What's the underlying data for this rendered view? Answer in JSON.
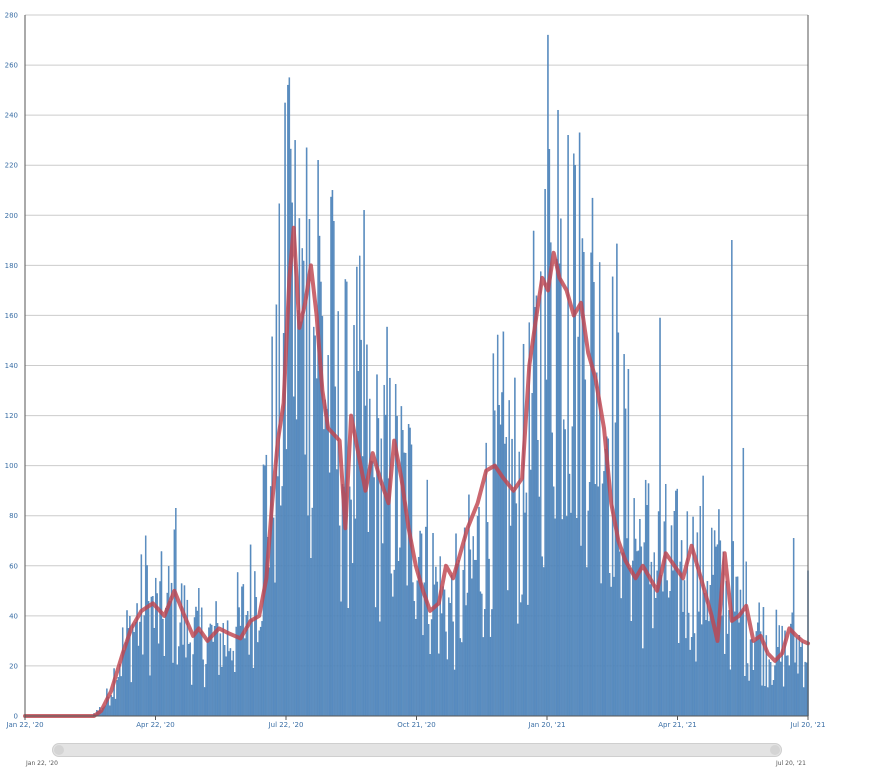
{
  "colors": {
    "bar": "#5b8fc3",
    "bar_edge": "#3f76ad",
    "average": "#c0454f",
    "grid": "#cccccc",
    "axis": "#555555"
  },
  "navigator": {
    "start_label": "Jan 22, '20",
    "end_label": "Jul 20, '21"
  },
  "chart_data": {
    "type": "bar",
    "title": "",
    "xlabel": "",
    "ylabel": "",
    "x_range": [
      "2020-01-22",
      "2021-07-20"
    ],
    "ylim": [
      0,
      280
    ],
    "yticks": [
      0,
      20,
      40,
      60,
      80,
      100,
      120,
      140,
      160,
      180,
      200,
      220,
      240,
      260,
      280
    ],
    "xticks": [
      "Jan 22, '20",
      "Apr 22, '20",
      "Jul 22, '20",
      "Oct 21, '20",
      "Jan 20, '21",
      "Apr 21, '21",
      "Jul 20, '21"
    ],
    "grid": true,
    "legend": "none",
    "series": [
      {
        "type": "bar",
        "interval": "daily",
        "start": "2020-01-22",
        "end": "2021-07-20",
        "shape_knots": [
          [
            "2020-01-22",
            0
          ],
          [
            "2020-03-08",
            0
          ],
          [
            "2020-03-18",
            5
          ],
          [
            "2020-03-28",
            25
          ],
          [
            "2020-04-08",
            40
          ],
          [
            "2020-04-18",
            44
          ],
          [
            "2020-04-28",
            42
          ],
          [
            "2020-05-05",
            48
          ],
          [
            "2020-05-15",
            35
          ],
          [
            "2020-05-25",
            32
          ],
          [
            "2020-06-10",
            33
          ],
          [
            "2020-06-20",
            38
          ],
          [
            "2020-06-30",
            55
          ],
          [
            "2020-07-08",
            90
          ],
          [
            "2020-07-15",
            120
          ],
          [
            "2020-07-20",
            150
          ],
          [
            "2020-07-25",
            190
          ],
          [
            "2020-07-30",
            170
          ],
          [
            "2020-08-05",
            155
          ],
          [
            "2020-08-12",
            175
          ],
          [
            "2020-08-20",
            140
          ],
          [
            "2020-08-28",
            115
          ],
          [
            "2020-09-05",
            110
          ],
          [
            "2020-09-12",
            120
          ],
          [
            "2020-09-20",
            95
          ],
          [
            "2020-09-28",
            102
          ],
          [
            "2020-10-06",
            95
          ],
          [
            "2020-10-14",
            90
          ],
          [
            "2020-10-22",
            85
          ],
          [
            "2020-10-30",
            62
          ],
          [
            "2020-11-07",
            48
          ],
          [
            "2020-11-15",
            45
          ],
          [
            "2020-11-25",
            55
          ],
          [
            "2020-12-05",
            75
          ],
          [
            "2020-12-15",
            98
          ],
          [
            "2020-12-25",
            100
          ],
          [
            "2021-01-02",
            92
          ],
          [
            "2021-01-08",
            115
          ],
          [
            "2021-01-15",
            150
          ],
          [
            "2021-01-22",
            172
          ],
          [
            "2021-01-28",
            180
          ],
          [
            "2021-02-05",
            172
          ],
          [
            "2021-02-12",
            165
          ],
          [
            "2021-02-20",
            160
          ],
          [
            "2021-03-01",
            135
          ],
          [
            "2021-03-10",
            120
          ],
          [
            "2021-03-18",
            85
          ],
          [
            "2021-03-26",
            70
          ],
          [
            "2021-04-03",
            68
          ],
          [
            "2021-04-11",
            60
          ],
          [
            "2021-04-19",
            58
          ],
          [
            "2021-04-27",
            62
          ],
          [
            "2021-05-05",
            60
          ],
          [
            "2021-05-13",
            65
          ],
          [
            "2021-05-21",
            56
          ],
          [
            "2021-05-29",
            45
          ],
          [
            "2021-06-06",
            40
          ],
          [
            "2021-06-14",
            38
          ],
          [
            "2021-06-22",
            30
          ],
          [
            "2021-07-01",
            26
          ],
          [
            "2021-07-10",
            30
          ],
          [
            "2021-07-20",
            30
          ]
        ],
        "spikes": [
          [
            "2020-07-24",
            255
          ],
          [
            "2020-07-23",
            252
          ],
          [
            "2020-07-26",
            205
          ],
          [
            "2020-08-05",
            227
          ],
          [
            "2020-08-13",
            222
          ],
          [
            "2020-08-23",
            210
          ],
          [
            "2020-09-14",
            202
          ],
          [
            "2020-05-06",
            83
          ],
          [
            "2020-04-15",
            72
          ],
          [
            "2021-01-20",
            272
          ],
          [
            "2021-01-27",
            242
          ],
          [
            "2021-02-03",
            232
          ],
          [
            "2021-02-08",
            220
          ],
          [
            "2021-05-28",
            190
          ],
          [
            "2021-04-08",
            159
          ],
          [
            "2021-06-05",
            107
          ],
          [
            "2021-07-20",
            58
          ],
          [
            "2021-07-10",
            71
          ]
        ]
      },
      {
        "type": "line",
        "smoothing": "7-day average",
        "points": [
          [
            "2020-01-22",
            0
          ],
          [
            "2020-03-10",
            0
          ],
          [
            "2020-03-15",
            2
          ],
          [
            "2020-03-22",
            10
          ],
          [
            "2020-03-30",
            25
          ],
          [
            "2020-04-05",
            35
          ],
          [
            "2020-04-12",
            42
          ],
          [
            "2020-04-20",
            45
          ],
          [
            "2020-04-28",
            40
          ],
          [
            "2020-05-05",
            50
          ],
          [
            "2020-05-12",
            40
          ],
          [
            "2020-05-18",
            32
          ],
          [
            "2020-05-22",
            35
          ],
          [
            "2020-05-28",
            30
          ],
          [
            "2020-06-05",
            35
          ],
          [
            "2020-06-12",
            33
          ],
          [
            "2020-06-20",
            31
          ],
          [
            "2020-06-27",
            38
          ],
          [
            "2020-07-03",
            40
          ],
          [
            "2020-07-08",
            55
          ],
          [
            "2020-07-12",
            85
          ],
          [
            "2020-07-16",
            110
          ],
          [
            "2020-07-20",
            125
          ],
          [
            "2020-07-24",
            175
          ],
          [
            "2020-07-27",
            195
          ],
          [
            "2020-07-31",
            155
          ],
          [
            "2020-08-04",
            165
          ],
          [
            "2020-08-08",
            180
          ],
          [
            "2020-08-12",
            160
          ],
          [
            "2020-08-16",
            130
          ],
          [
            "2020-08-20",
            115
          ],
          [
            "2020-08-28",
            110
          ],
          [
            "2020-09-01",
            75
          ],
          [
            "2020-09-05",
            120
          ],
          [
            "2020-09-10",
            105
          ],
          [
            "2020-09-15",
            90
          ],
          [
            "2020-09-20",
            105
          ],
          [
            "2020-09-25",
            95
          ],
          [
            "2020-10-01",
            85
          ],
          [
            "2020-10-05",
            110
          ],
          [
            "2020-10-10",
            95
          ],
          [
            "2020-10-15",
            75
          ],
          [
            "2020-10-20",
            60
          ],
          [
            "2020-10-25",
            50
          ],
          [
            "2020-10-30",
            42
          ],
          [
            "2020-11-05",
            45
          ],
          [
            "2020-11-10",
            60
          ],
          [
            "2020-11-15",
            55
          ],
          [
            "2020-11-20",
            65
          ],
          [
            "2020-11-25",
            75
          ],
          [
            "2020-12-02",
            85
          ],
          [
            "2020-12-08",
            98
          ],
          [
            "2020-12-14",
            100
          ],
          [
            "2020-12-20",
            95
          ],
          [
            "2020-12-27",
            90
          ],
          [
            "2021-01-02",
            95
          ],
          [
            "2021-01-07",
            140
          ],
          [
            "2021-01-12",
            160
          ],
          [
            "2021-01-16",
            175
          ],
          [
            "2021-01-20",
            170
          ],
          [
            "2021-01-24",
            185
          ],
          [
            "2021-01-28",
            175
          ],
          [
            "2021-02-02",
            170
          ],
          [
            "2021-02-07",
            160
          ],
          [
            "2021-02-12",
            165
          ],
          [
            "2021-02-17",
            145
          ],
          [
            "2021-02-22",
            135
          ],
          [
            "2021-02-28",
            115
          ],
          [
            "2021-03-05",
            85
          ],
          [
            "2021-03-10",
            70
          ],
          [
            "2021-03-15",
            62
          ],
          [
            "2021-03-22",
            55
          ],
          [
            "2021-03-27",
            60
          ],
          [
            "2021-04-01",
            55
          ],
          [
            "2021-04-06",
            50
          ],
          [
            "2021-04-12",
            65
          ],
          [
            "2021-04-18",
            60
          ],
          [
            "2021-04-24",
            55
          ],
          [
            "2021-04-30",
            68
          ],
          [
            "2021-05-05",
            58
          ],
          [
            "2021-05-10",
            48
          ],
          [
            "2021-05-14",
            40
          ],
          [
            "2021-05-18",
            30
          ],
          [
            "2021-05-23",
            65
          ],
          [
            "2021-05-28",
            38
          ],
          [
            "2021-06-02",
            40
          ],
          [
            "2021-06-07",
            44
          ],
          [
            "2021-06-12",
            30
          ],
          [
            "2021-06-17",
            32
          ],
          [
            "2021-06-22",
            25
          ],
          [
            "2021-06-27",
            22
          ],
          [
            "2021-07-02",
            25
          ],
          [
            "2021-07-07",
            35
          ],
          [
            "2021-07-12",
            32
          ],
          [
            "2021-07-16",
            30
          ],
          [
            "2021-07-20",
            29
          ]
        ]
      }
    ]
  }
}
